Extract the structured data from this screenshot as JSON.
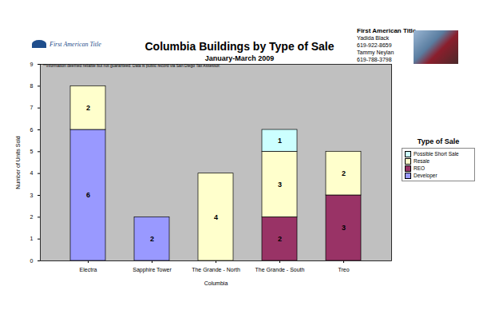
{
  "chart_data": {
    "type": "bar",
    "title": "Columbia Buildings by Type of Sale",
    "subtitle": "January-March 2009",
    "logo_text": "First American Title",
    "contact": [
      "First American Title",
      "Yadida Black",
      "619-922-8659",
      "Tammy Neylan",
      "619-788-3798"
    ],
    "note": "**Information deemed reliable but not guaranteed.  Data is public record via San Diego Tax Assessor.",
    "xlabel": "Columbia",
    "ylabel": "Number of Units Sold",
    "categories": [
      "Electra",
      "Sapphire Tower",
      "The Grande - North",
      "The Grande - South",
      "Treo"
    ],
    "series": [
      {
        "name": "Developer",
        "color": "#9999ff",
        "values": [
          6,
          2,
          0,
          0,
          0
        ]
      },
      {
        "name": "REO",
        "color": "#993366",
        "values": [
          0,
          0,
          0,
          2,
          3
        ]
      },
      {
        "name": "Resale",
        "color": "#ffffcc",
        "values": [
          2,
          0,
          4,
          3,
          2
        ]
      },
      {
        "name": "Possible Short Sale",
        "color": "#ccffff",
        "values": [
          0,
          0,
          0,
          1,
          0
        ]
      }
    ],
    "legend_title": "Type of Sale",
    "legend": "right",
    "stacked": true,
    "data_labels": true,
    "grid": false,
    "ylim": [
      0,
      9
    ],
    "yticks": [
      0,
      1,
      2,
      3,
      4,
      5,
      6,
      7,
      8,
      9
    ]
  }
}
